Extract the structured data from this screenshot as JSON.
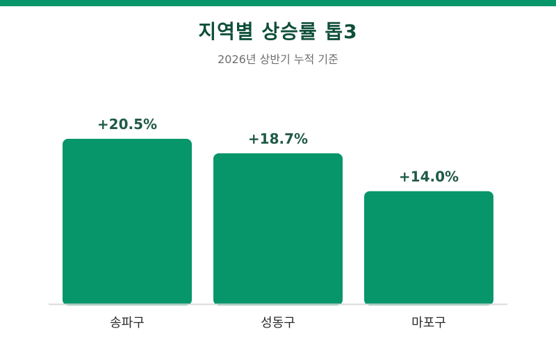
{
  "chart_data": {
    "type": "bar",
    "title": "지역별 상승률 톱3",
    "subtitle": "2026년 상반기 누적 기준",
    "categories": [
      "송파구",
      "성동구",
      "마포구"
    ],
    "values": [
      20.5,
      18.7,
      14.0
    ],
    "data_labels": [
      "+20.5%",
      "+18.7%",
      "+14.0%"
    ],
    "unit": "%",
    "ylim": [
      0,
      27.6
    ],
    "grid": false,
    "legend": "none"
  },
  "colors": {
    "accent": "#07956A",
    "title": "#0F4F3A",
    "label": "#1F5A45",
    "subtitle": "#6E6E6E",
    "baseline": "#D9D9D9"
  }
}
